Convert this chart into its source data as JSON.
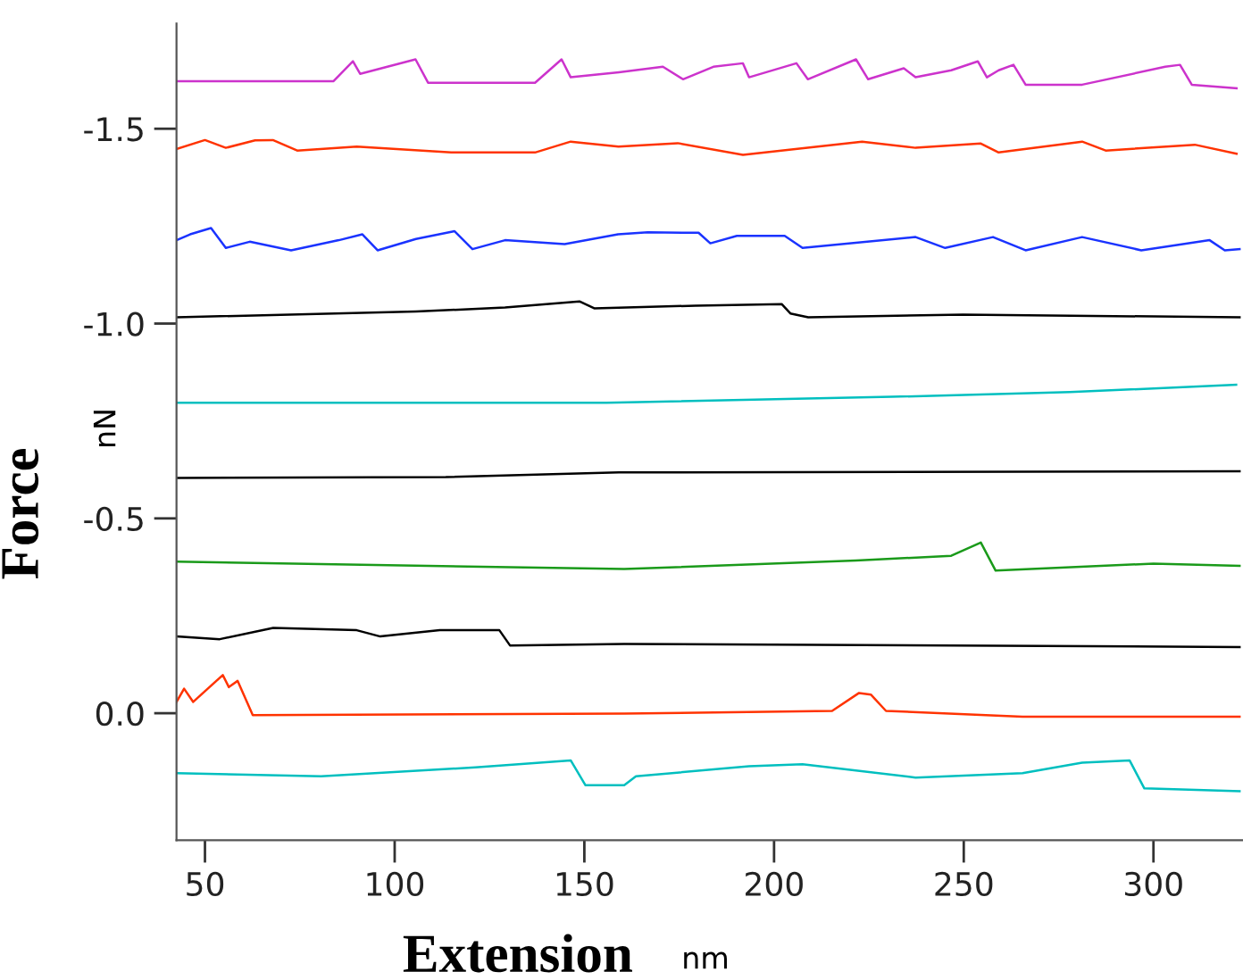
{
  "chart_data": {
    "type": "line",
    "xlabel": "Extension",
    "ylabel": "Force",
    "annotations": [
      "nN",
      "nm"
    ],
    "xlim": [
      42.5,
      323.6
    ],
    "ylim": [
      0.326,
      -1.77
    ],
    "xticks": [
      50,
      100,
      150,
      200,
      250,
      300
    ],
    "yticks": [
      {
        "value": -1.5,
        "label": "-1.5"
      },
      {
        "value": -1.0,
        "label": "-1.0"
      },
      {
        "value": -0.5,
        "label": "-0.5"
      },
      {
        "value": 0.0,
        "label": "0.0"
      }
    ],
    "grid": false,
    "legend": false,
    "marker": "none",
    "line_style": "solid",
    "series": [
      {
        "color": "#cc33cc",
        "x": [
          42.5,
          83.9,
          89.0,
          90.9,
          105.5,
          108.8,
          137.0,
          144.0,
          146.4,
          159.1,
          170.7,
          176.0,
          184.0,
          191.8,
          193.4,
          205.9,
          208.9,
          221.6,
          224.8,
          234.2,
          237.3,
          246.7,
          253.7,
          256.1,
          259.2,
          263.1,
          266.3,
          281.2,
          303.1,
          307.0,
          310.1,
          321.9
        ],
        "values": [
          -1.622,
          -1.622,
          -1.673,
          -1.641,
          -1.678,
          -1.618,
          -1.618,
          -1.678,
          -1.632,
          -1.645,
          -1.659,
          -1.627,
          -1.659,
          -1.668,
          -1.632,
          -1.668,
          -1.627,
          -1.678,
          -1.627,
          -1.655,
          -1.632,
          -1.65,
          -1.673,
          -1.632,
          -1.65,
          -1.664,
          -1.613,
          -1.613,
          -1.659,
          -1.664,
          -1.613,
          -1.604
        ]
      },
      {
        "color": "#ff3300",
        "x": [
          42.5,
          50.0,
          55.5,
          63.2,
          67.9,
          74.3,
          90.0,
          114.9,
          137.0,
          146.4,
          159.0,
          174.6,
          191.8,
          223.2,
          237.3,
          254.5,
          259.2,
          281.2,
          287.4,
          310.9,
          321.9
        ],
        "values": [
          -1.448,
          -1.471,
          -1.451,
          -1.47,
          -1.471,
          -1.444,
          -1.454,
          -1.439,
          -1.439,
          -1.467,
          -1.454,
          -1.463,
          -1.433,
          -1.467,
          -1.451,
          -1.462,
          -1.439,
          -1.467,
          -1.444,
          -1.459,
          -1.436
        ]
      },
      {
        "color": "#1a33ff",
        "x": [
          42.5,
          46.1,
          51.6,
          55.5,
          61.8,
          72.7,
          85.3,
          91.5,
          95.5,
          105.6,
          115.8,
          120.5,
          129.1,
          144.8,
          158.9,
          166.7,
          180.1,
          183.2,
          190.2,
          202.8,
          207.5,
          237.3,
          245.1,
          257.7,
          266.3,
          281.2,
          296.8,
          314.8,
          318.8,
          322.7
        ],
        "values": [
          -1.214,
          -1.229,
          -1.245,
          -1.194,
          -1.21,
          -1.188,
          -1.214,
          -1.229,
          -1.188,
          -1.217,
          -1.237,
          -1.191,
          -1.214,
          -1.204,
          -1.229,
          -1.234,
          -1.233,
          -1.206,
          -1.225,
          -1.225,
          -1.194,
          -1.222,
          -1.194,
          -1.222,
          -1.188,
          -1.222,
          -1.188,
          -1.214,
          -1.188,
          -1.191
        ]
      },
      {
        "color": "#000000",
        "x": [
          42.5,
          105.6,
          129.1,
          148.7,
          152.6,
          179.3,
          202.0,
          204.3,
          209.0,
          249.8,
          322.7
        ],
        "values": [
          -1.016,
          -1.031,
          -1.041,
          -1.057,
          -1.039,
          -1.046,
          -1.05,
          -1.026,
          -1.016,
          -1.023,
          -1.016
        ]
      },
      {
        "color": "#00bfbf",
        "x": [
          42.5,
          155.8,
          231.0,
          278.0,
          321.8
        ],
        "values": [
          -0.797,
          -0.797,
          -0.812,
          -0.824,
          -0.843
        ]
      },
      {
        "color": "#000000",
        "x": [
          42.5,
          113.5,
          159.1,
          322.7
        ],
        "values": [
          -0.604,
          -0.606,
          -0.618,
          -0.621
        ]
      },
      {
        "color": "#1a9a1a",
        "x": [
          42.5,
          160.5,
          221.6,
          246.7,
          254.5,
          258.4,
          300.0,
          322.7
        ],
        "values": [
          -0.389,
          -0.37,
          -0.392,
          -0.404,
          -0.438,
          -0.366,
          -0.384,
          -0.378
        ]
      },
      {
        "color": "#000000",
        "x": [
          42.5,
          53.9,
          68.0,
          90.0,
          96.2,
          111.9,
          127.6,
          130.4,
          160.5,
          322.7
        ],
        "values": [
          -0.197,
          -0.19,
          -0.219,
          -0.213,
          -0.197,
          -0.213,
          -0.213,
          -0.174,
          -0.178,
          -0.17
        ]
      },
      {
        "color": "#ff3300",
        "x": [
          42.5,
          44.5,
          46.9,
          54.7,
          56.3,
          58.6,
          62.6,
          160.5,
          215.3,
          222.4,
          225.5,
          229.5,
          265.5,
          322.7
        ],
        "values": [
          -0.029,
          -0.063,
          -0.029,
          -0.098,
          -0.067,
          -0.083,
          0.005,
          0.001,
          -0.006,
          -0.052,
          -0.048,
          -0.006,
          0.009,
          0.009
        ]
      },
      {
        "color": "#00bfbf",
        "x": [
          42.5,
          80.6,
          121.3,
          146.4,
          150.3,
          160.5,
          163.6,
          193.4,
          207.5,
          237.3,
          265.5,
          281.2,
          293.7,
          297.6,
          322.7
        ],
        "values": [
          0.154,
          0.162,
          0.139,
          0.121,
          0.185,
          0.185,
          0.162,
          0.136,
          0.131,
          0.165,
          0.154,
          0.127,
          0.121,
          0.193,
          0.2
        ]
      }
    ]
  }
}
